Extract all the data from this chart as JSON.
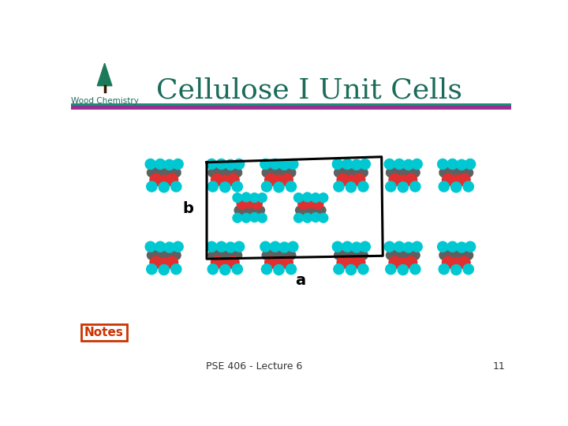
{
  "title": "Cellulose I Unit Cells",
  "subtitle_left": "Wood Chemistry",
  "bg_color": "#ffffff",
  "title_color": "#1a6b5a",
  "header_line1_color": "#1a8a7a",
  "header_line2_color": "#9b2d8e",
  "footer_text": "PSE 406 - Lecture 6",
  "footer_page": "11",
  "notes_color": "#cc3300",
  "label_b": "b",
  "label_a": "a",
  "tree_color": "#1a7a5a",
  "atom_cyan": "#00c8d2",
  "atom_red": "#e03030",
  "atom_dgray": "#606060",
  "atom_gray": "#888888",
  "bond_color": "#bbbbbb"
}
